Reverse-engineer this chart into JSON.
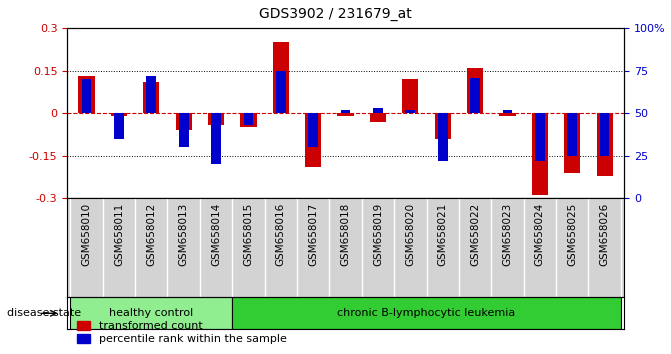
{
  "title": "GDS3902 / 231679_at",
  "samples": [
    "GSM658010",
    "GSM658011",
    "GSM658012",
    "GSM658013",
    "GSM658014",
    "GSM658015",
    "GSM658016",
    "GSM658017",
    "GSM658018",
    "GSM658019",
    "GSM658020",
    "GSM658021",
    "GSM658022",
    "GSM658023",
    "GSM658024",
    "GSM658025",
    "GSM658026"
  ],
  "red_values": [
    0.13,
    -0.01,
    0.11,
    -0.06,
    -0.04,
    -0.05,
    0.25,
    -0.19,
    -0.01,
    -0.03,
    0.12,
    -0.09,
    0.16,
    -0.01,
    -0.29,
    -0.21,
    -0.22
  ],
  "blue_values": [
    70,
    35,
    72,
    30,
    20,
    43,
    75,
    30,
    52,
    53,
    52,
    22,
    71,
    52,
    22,
    25,
    25
  ],
  "ylim": [
    -0.3,
    0.3
  ],
  "yticks_left": [
    -0.3,
    -0.15,
    0,
    0.15,
    0.3
  ],
  "yticks_right": [
    0,
    25,
    50,
    75,
    100
  ],
  "red_color": "#cc0000",
  "blue_color": "#0000cc",
  "healthy_label": "healthy control",
  "disease_label": "chronic B-lymphocytic leukemia",
  "healthy_count": 5,
  "legend_red": "transformed count",
  "legend_blue": "percentile rank within the sample",
  "disease_state_label": "disease state",
  "healthy_color": "#90ee90",
  "disease_color": "#32cd32",
  "bar_width": 0.5,
  "blue_bar_width": 0.3,
  "bg_color": "#ffffff",
  "plot_bg": "#ffffff",
  "border_color": "#000000",
  "label_bg": "#d3d3d3"
}
